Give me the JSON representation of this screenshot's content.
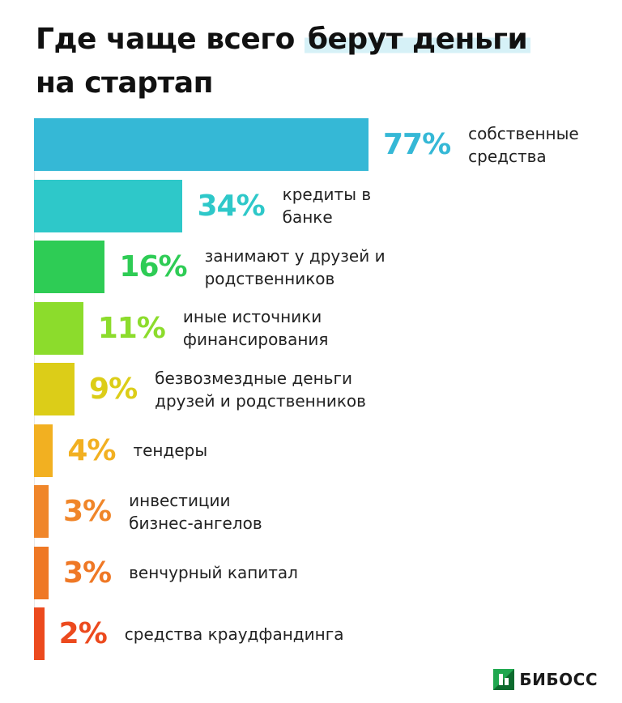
{
  "header": {
    "title_start": "Где чаще всего ",
    "title_highlight": "берут деньги",
    "title_end": "на стартап"
  },
  "brand": {
    "name": "БИБОСС",
    "logo_icon": "biboss-logo-icon"
  },
  "chart_data": {
    "type": "bar",
    "orientation": "horizontal",
    "title": "Где чаще всего берут деньги на стартап",
    "categories": [
      "собственные\nсредства",
      "кредиты в\nбанке",
      "занимают у друзей и\nродственников",
      "иные источники\nфинансирования",
      "безвозмездные деньги\nдрузей и родственников",
      "тендеры",
      "инвестиции\nбизнес-ангелов",
      "венчурный капитал",
      "средства краудфандинга"
    ],
    "values": [
      77,
      34,
      16,
      11,
      9,
      4,
      3,
      3,
      2
    ],
    "value_labels": [
      "77%",
      "34%",
      "16%",
      "11%",
      "9%",
      "4%",
      "3%",
      "3%",
      "2%"
    ],
    "colors": [
      "#35b8d6",
      "#2ec8c9",
      "#2ecc55",
      "#8cdc2c",
      "#dccd18",
      "#f2b021",
      "#f0862a",
      "#ef7825",
      "#ec4a1e"
    ],
    "xlim": [
      0,
      77
    ],
    "grid": false,
    "legend": "none"
  }
}
